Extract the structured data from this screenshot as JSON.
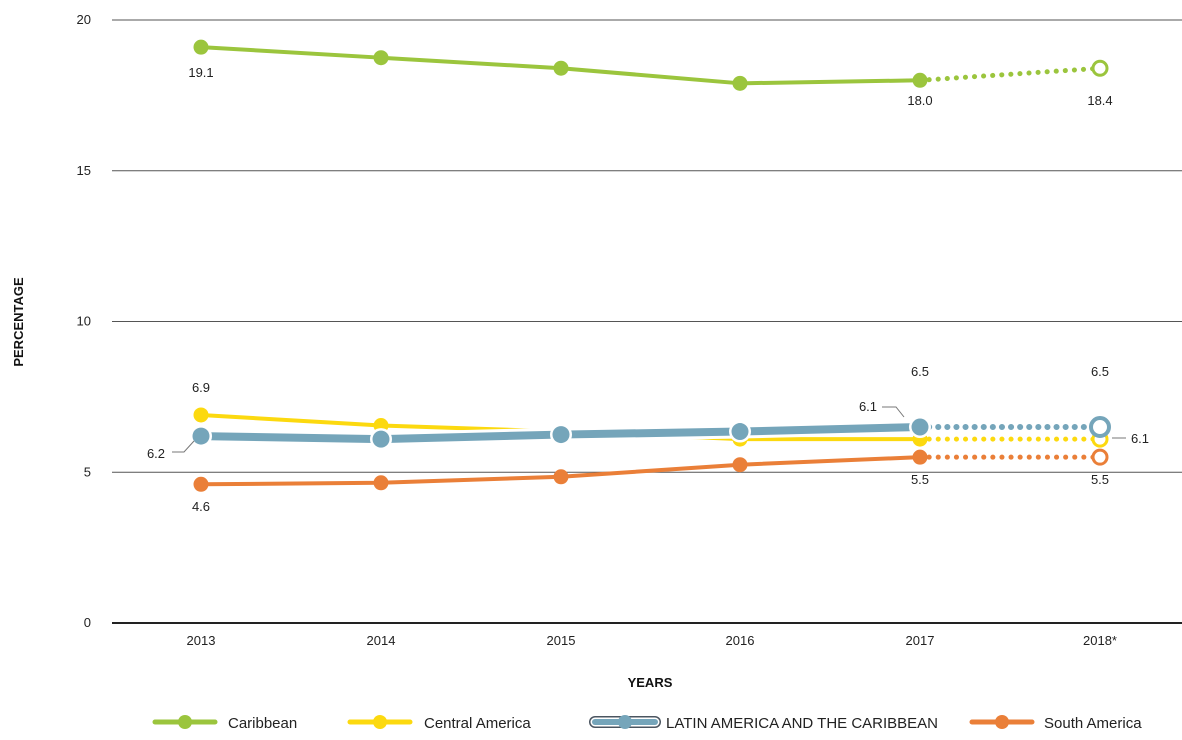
{
  "chart_data": {
    "type": "line",
    "xlabel": "YEARS",
    "ylabel": "PERCENTAGE",
    "categories": [
      "2013",
      "2014",
      "2015",
      "2016",
      "2017",
      "2018*"
    ],
    "ylim": [
      0,
      20
    ],
    "yticks": [
      "0",
      "5",
      "10",
      "15",
      "20"
    ],
    "grid": true,
    "legend_position": "bottom",
    "projected_from_index": 4,
    "series": [
      {
        "name": "Caribbean",
        "color": "#9bc53d",
        "values": [
          19.1,
          18.75,
          18.4,
          17.9,
          18.0,
          18.4
        ],
        "labels": [
          {
            "index": 0,
            "text": "19.1"
          },
          {
            "index": 4,
            "text": "18.0"
          },
          {
            "index": 5,
            "text": "18.4"
          }
        ]
      },
      {
        "name": "Central America",
        "color": "#fcd90f",
        "values": [
          6.9,
          6.55,
          6.35,
          6.1,
          6.1,
          6.1
        ],
        "labels": [
          {
            "index": 0,
            "text": "6.9"
          },
          {
            "index": 4,
            "text": "6.1"
          },
          {
            "index": 5,
            "text": "6.1"
          }
        ]
      },
      {
        "name": "LATIN AMERICA AND THE CARIBBEAN",
        "color": "#75a5ba",
        "values": [
          6.2,
          6.1,
          6.25,
          6.35,
          6.5,
          6.5
        ],
        "labels": [
          {
            "index": 0,
            "text": "6.2"
          },
          {
            "index": 4,
            "text": "6.5"
          },
          {
            "index": 5,
            "text": "6.5"
          }
        ]
      },
      {
        "name": "South America",
        "color": "#ea7f38",
        "values": [
          4.6,
          4.65,
          4.85,
          5.25,
          5.5,
          5.5
        ],
        "labels": [
          {
            "index": 0,
            "text": "4.6"
          },
          {
            "index": 4,
            "text": "5.5"
          },
          {
            "index": 5,
            "text": "5.5"
          }
        ]
      }
    ]
  }
}
